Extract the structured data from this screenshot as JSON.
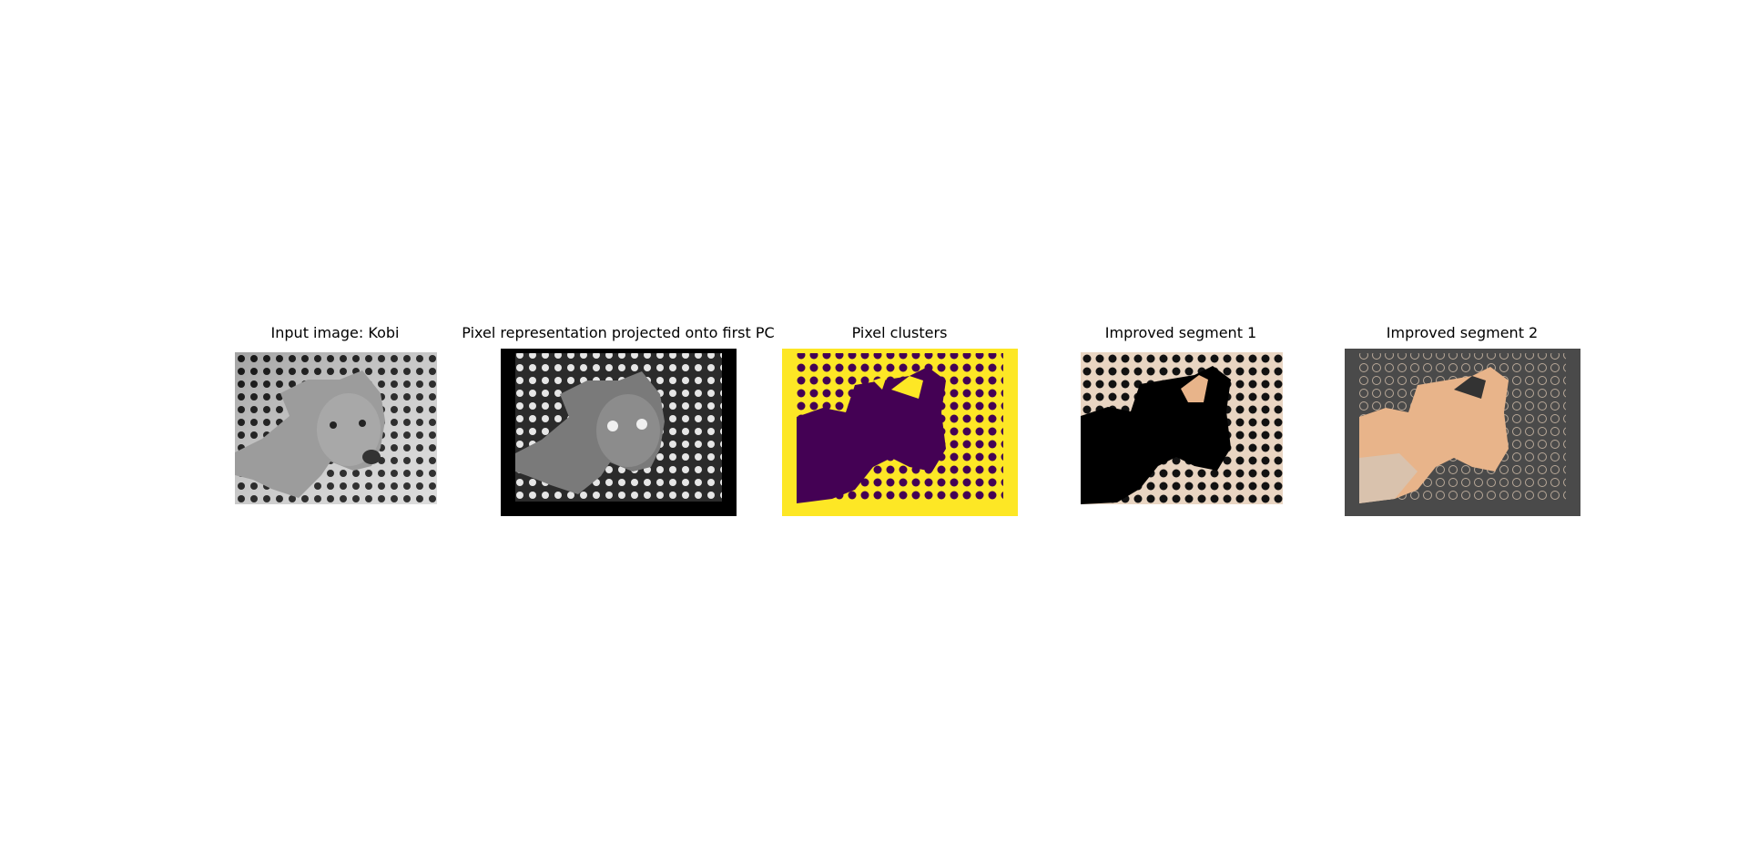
{
  "figure": {
    "panels": [
      {
        "id": "input",
        "title": "Input image: Kobi",
        "icon": "grayscale-dog-photo"
      },
      {
        "id": "pc",
        "title": "Pixel representation projected onto first PC",
        "icon": "pc-projection-dog-image"
      },
      {
        "id": "clusters",
        "title": "Pixel clusters",
        "icon": "cluster-map-dog-image"
      },
      {
        "id": "seg1",
        "title": "Improved segment 1",
        "icon": "segment-background-image"
      },
      {
        "id": "seg2",
        "title": "Improved segment 2",
        "icon": "segment-dog-image"
      }
    ],
    "colors": {
      "cluster_yellow": "#fde725",
      "cluster_purple": "#440154",
      "dog_tan": "#e8b48a",
      "tile_beige": "#e9d5c2",
      "seg2_bg": "#4a4a4a",
      "pc_border": "#000000"
    }
  }
}
